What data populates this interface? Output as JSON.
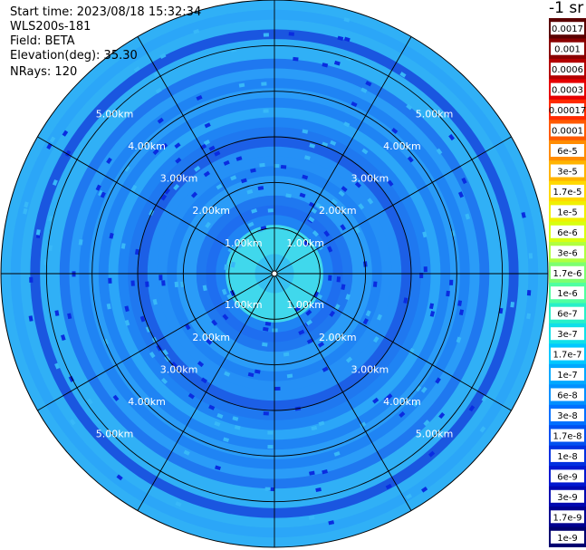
{
  "header": {
    "start_time": "Start time: 2023/08/18 15:32:34",
    "instrument": "WLS200s-181",
    "field": "Field: BETA",
    "elevation": "Elevation(deg): 35.30",
    "nrays": "NRays: 120"
  },
  "colorbar": {
    "title": "-1 sr",
    "labels": [
      "0.0017",
      "0.001",
      "0.0006",
      "0.0003",
      "0.00017",
      "0.0001",
      "6e-5",
      "3e-5",
      "1.7e-5",
      "1e-5",
      "6e-6",
      "3e-6",
      "1.7e-6",
      "1e-6",
      "6e-7",
      "3e-7",
      "1.7e-7",
      "1e-7",
      "6e-8",
      "3e-8",
      "1.7e-8",
      "1e-8",
      "6e-9",
      "3e-9",
      "1.7e-9",
      "1e-9"
    ],
    "colors": [
      "#5a0000",
      "#8a0000",
      "#b40000",
      "#e60000",
      "#ff2a00",
      "#ff5a00",
      "#ff8c00",
      "#ffb400",
      "#ffd800",
      "#f0f000",
      "#d8ff10",
      "#b0ff40",
      "#7dff70",
      "#50ffa0",
      "#28f0c8",
      "#10e0e8",
      "#00c8ff",
      "#00a8ff",
      "#0090ff",
      "#0070ff",
      "#0050f0",
      "#0030e0",
      "#0018d0",
      "#0008b0",
      "#000090",
      "#000070"
    ]
  },
  "chart_data": {
    "type": "polar_ppi",
    "nrays": 120,
    "range_rings_km": [
      1,
      2,
      3,
      4,
      5
    ],
    "max_range_km": 6,
    "range_ring_labels": [
      "1.00km",
      "2.00km",
      "3.00km",
      "4.00km",
      "5.00km"
    ],
    "azimuth_spokes_deg": [
      0,
      30,
      60,
      90,
      120,
      150,
      180,
      210,
      240,
      270,
      300,
      330
    ],
    "field": "BETA",
    "elevation_deg": 35.3,
    "dominant_value_range": [
      "1e-8",
      "1.7e-7"
    ],
    "near_range_value_range": [
      "1e-7",
      "1e-6"
    ]
  }
}
